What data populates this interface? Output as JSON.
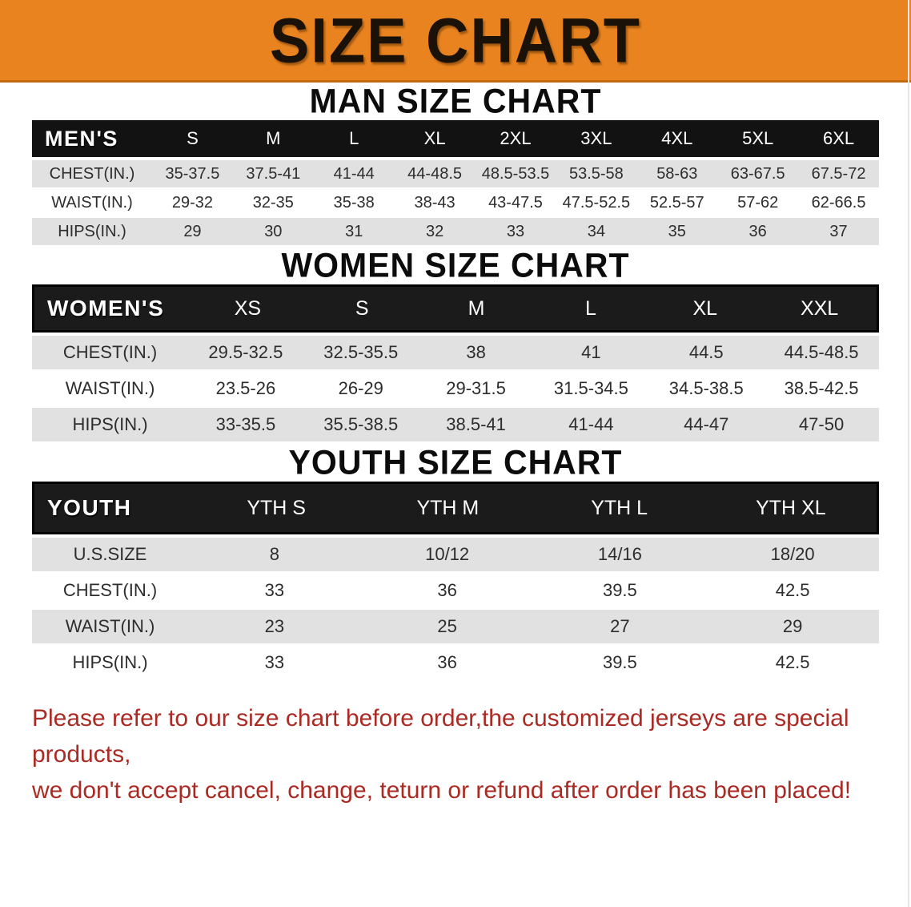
{
  "banner": {
    "title": "SIZE CHART"
  },
  "colors": {
    "banner_bg": "#e8831f",
    "header_bg": "#121212",
    "row_alt_bg": "#e1e1e1",
    "row_bg": "#ffffff",
    "cell_text": "#2d2d2d",
    "footer_red": "#aa2a24"
  },
  "sections": {
    "men": {
      "heading": "MAN SIZE CHART",
      "table": {
        "corner": "MEN'S",
        "framed": false,
        "label_col": 150,
        "columns": [
          "S",
          "M",
          "L",
          "XL",
          "2XL",
          "3XL",
          "4XL",
          "5XL",
          "6XL"
        ],
        "rows": [
          {
            "label": "CHEST(IN.)",
            "values": [
              "35-37.5",
              "37.5-41",
              "41-44",
              "44-48.5",
              "48.5-53.5",
              "53.5-58",
              "58-63",
              "63-67.5",
              "67.5-72"
            ]
          },
          {
            "label": "WAIST(IN.)",
            "values": [
              "29-32",
              "32-35",
              "35-38",
              "38-43",
              "43-47.5",
              "47.5-52.5",
              "52.5-57",
              "57-62",
              "62-66.5"
            ]
          },
          {
            "label": "HIPS(IN.)",
            "values": [
              "29",
              "30",
              "31",
              "32",
              "33",
              "34",
              "35",
              "36",
              "37"
            ]
          }
        ]
      }
    },
    "women": {
      "heading": "WOMEN SIZE CHART",
      "table": {
        "corner": "WOMEN'S",
        "framed": true,
        "label_col": 195,
        "columns": [
          "XS",
          "S",
          "M",
          "L",
          "XL",
          "XXL"
        ],
        "rows": [
          {
            "label": "CHEST(IN.)",
            "values": [
              "29.5-32.5",
              "32.5-35.5",
              "38",
              "41",
              "44.5",
              "44.5-48.5"
            ]
          },
          {
            "label": "WAIST(IN.)",
            "values": [
              "23.5-26",
              "26-29",
              "29-31.5",
              "31.5-34.5",
              "34.5-38.5",
              "38.5-42.5"
            ]
          },
          {
            "label": "HIPS(IN.)",
            "values": [
              "33-35.5",
              "35.5-38.5",
              "38.5-41",
              "41-44",
              "44-47",
              "47-50"
            ]
          }
        ]
      }
    },
    "youth": {
      "heading": "YOUTH SIZE CHART",
      "table": {
        "corner": "YOUTH",
        "framed": true,
        "label_col": 195,
        "columns": [
          "YTH S",
          "YTH M",
          "YTH L",
          "YTH XL"
        ],
        "rows": [
          {
            "label": "U.S.SIZE",
            "values": [
              "8",
              "10/12",
              "14/16",
              "18/20"
            ]
          },
          {
            "label": "CHEST(IN.)",
            "values": [
              "33",
              "36",
              "39.5",
              "42.5"
            ]
          },
          {
            "label": "WAIST(IN.)",
            "values": [
              "23",
              "25",
              "27",
              "29"
            ]
          },
          {
            "label": "HIPS(IN.)",
            "values": [
              "33",
              "36",
              "39.5",
              "42.5"
            ]
          }
        ]
      }
    }
  },
  "footer": {
    "line1": "Please refer to our size chart before order,the customized jerseys are special products,",
    "line2": "we don't accept cancel, change, teturn or refund after order has been placed!"
  }
}
